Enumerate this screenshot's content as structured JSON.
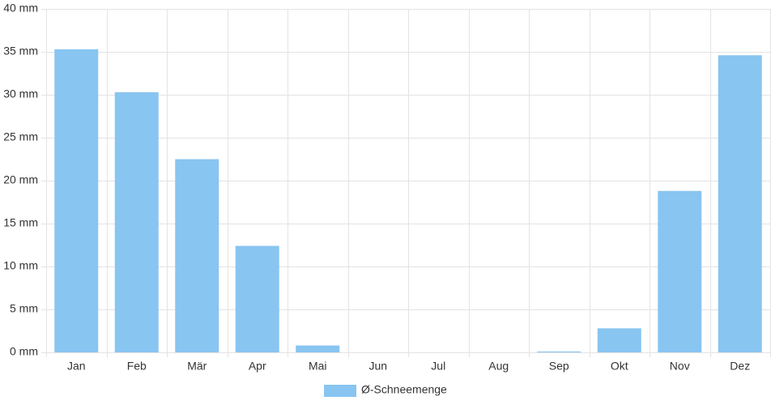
{
  "chart_data": {
    "type": "bar",
    "categories": [
      "Jan",
      "Feb",
      "Mär",
      "Apr",
      "Mai",
      "Jun",
      "Jul",
      "Aug",
      "Sep",
      "Okt",
      "Nov",
      "Dez"
    ],
    "series": [
      {
        "name": "Ø-Schneemenge",
        "color": "#88c5f1",
        "values": [
          35.3,
          30.3,
          22.5,
          12.4,
          0.8,
          0,
          0,
          0,
          0.1,
          2.8,
          18.8,
          34.6
        ]
      }
    ],
    "ylim": [
      0,
      40
    ],
    "yticks": [
      {
        "value": 0,
        "label": "0 mm"
      },
      {
        "value": 5,
        "label": "5 mm"
      },
      {
        "value": 10,
        "label": "10 mm"
      },
      {
        "value": 15,
        "label": "15 mm"
      },
      {
        "value": 20,
        "label": "20 mm"
      },
      {
        "value": 25,
        "label": "25 mm"
      },
      {
        "value": 30,
        "label": "30 mm"
      },
      {
        "value": 35,
        "label": "35 mm"
      },
      {
        "value": 40,
        "label": "40 mm"
      }
    ],
    "grid": true,
    "legend": "bottom"
  }
}
